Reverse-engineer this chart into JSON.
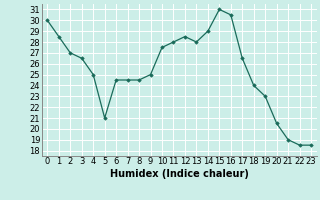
{
  "x": [
    0,
    1,
    2,
    3,
    4,
    5,
    6,
    7,
    8,
    9,
    10,
    11,
    12,
    13,
    14,
    15,
    16,
    17,
    18,
    19,
    20,
    21,
    22,
    23
  ],
  "y": [
    30,
    28.5,
    27,
    26.5,
    25,
    21,
    24.5,
    24.5,
    24.5,
    25,
    27.5,
    28,
    28.5,
    28,
    29,
    31,
    30.5,
    26.5,
    24,
    23,
    20.5,
    19,
    18.5,
    18.5
  ],
  "xlabel": "Humidex (Indice chaleur)",
  "ylim": [
    17.5,
    31.5
  ],
  "xlim": [
    -0.5,
    23.5
  ],
  "yticks": [
    18,
    19,
    20,
    21,
    22,
    23,
    24,
    25,
    26,
    27,
    28,
    29,
    30,
    31
  ],
  "xticks": [
    0,
    1,
    2,
    3,
    4,
    5,
    6,
    7,
    8,
    9,
    10,
    11,
    12,
    13,
    14,
    15,
    16,
    17,
    18,
    19,
    20,
    21,
    22,
    23
  ],
  "line_color": "#1a6b5a",
  "marker": "D",
  "marker_size": 1.8,
  "bg_color": "#cceee8",
  "grid_color": "#ffffff",
  "label_fontsize": 7.0,
  "tick_fontsize": 6.0
}
